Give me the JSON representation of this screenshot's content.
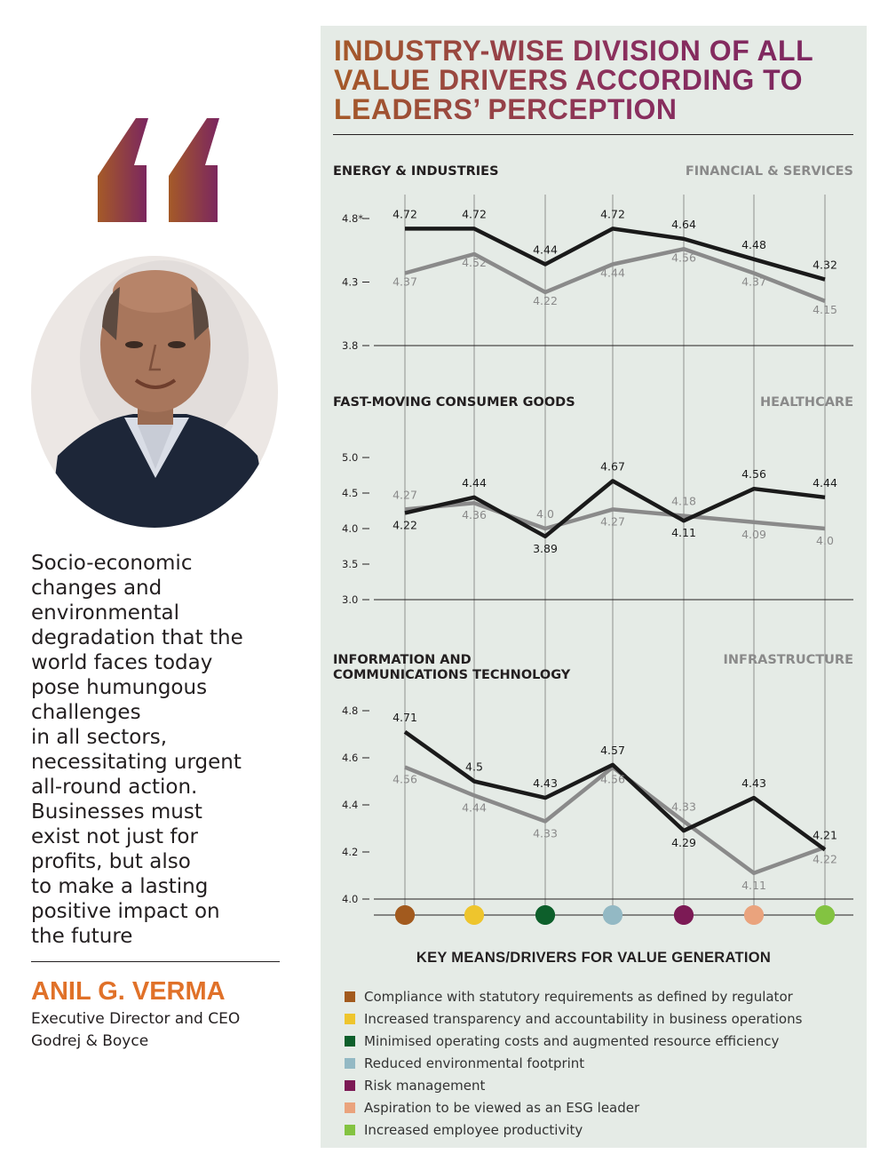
{
  "quote": {
    "text": "Socio-economic changes and environmental degradation that the world faces today pose humungous challenges in all sectors, necessitating urgent all-round action. Businesses must exist not just for profits, but also to make a lasting positive impact on the future",
    "lines": [
      "Socio-economic",
      "changes and",
      "environmental",
      "degradation that the",
      "world faces today",
      "pose humungous",
      "challenges",
      "in all sectors,",
      "necessitating urgent",
      "all-round action.",
      "Businesses must",
      "exist not just for",
      "profits, but also",
      "to make a lasting",
      "positive impact on",
      "the future"
    ],
    "name": "ANIL G. VERMA",
    "role_line1": "Executive Director and CEO",
    "role_line2": "Godrej & Boyce",
    "quote_colors": [
      "#a55a28",
      "#7a2560"
    ],
    "name_color": "#e07129"
  },
  "chart": {
    "title_lines": [
      "INDUSTRY-WISE DIVISION OF ALL",
      "VALUE DRIVERS ACCORDING TO",
      "LEADERS’ PERCEPTION"
    ],
    "key_title": "KEY MEANS/DRIVERS FOR VALUE GENERATION"
  },
  "drivers": [
    {
      "label": "Compliance with statutory requirements as defined by regulator",
      "color": "#a25a1e"
    },
    {
      "label": "Increased transparency and accountability in business operations",
      "color": "#eec52d"
    },
    {
      "label": "Minimised operating costs and augmented resource efficiency",
      "color": "#0d5f2b"
    },
    {
      "label": "Reduced environmental footprint",
      "color": "#93b9c4"
    },
    {
      "label": "Risk management",
      "color": "#7c1a55"
    },
    {
      "label": "Aspiration to be viewed as an ESG leader",
      "color": "#eaa37d"
    },
    {
      "label": "Increased employee productivity",
      "color": "#83c341"
    }
  ],
  "chart_data": [
    {
      "type": "line",
      "categories": [
        "Compliance with statutory requirements as defined by regulator",
        "Increased transparency and accountability in business operations",
        "Minimised operating costs and augmented resource efficiency",
        "Reduced environmental footprint",
        "Risk management",
        "Aspiration to be viewed as an ESG leader",
        "Increased employee productivity"
      ],
      "ylim": [
        3.8,
        4.8
      ],
      "yticks": [
        "4.8*",
        "4.3",
        "3.8"
      ],
      "series": [
        {
          "name": "ENERGY & INDUSTRIES",
          "color": "#1a1a1a",
          "values": [
            4.72,
            4.72,
            4.44,
            4.72,
            4.64,
            4.48,
            4.32
          ],
          "labels": [
            "4.72",
            "4.72",
            "4.44",
            "4.72",
            "4.64",
            "4.48",
            "4.32"
          ]
        },
        {
          "name": "FINANCIAL & SERVICES",
          "color": "#8a8a8a",
          "values": [
            4.37,
            4.52,
            4.22,
            4.44,
            4.56,
            4.37,
            4.15
          ],
          "labels": [
            "4.37",
            "4.52",
            "4.22",
            "4.44",
            "4.56",
            "4.37",
            "4.15"
          ]
        }
      ]
    },
    {
      "type": "line",
      "categories": [
        "Compliance with statutory requirements as defined by regulator",
        "Increased transparency and accountability in business operations",
        "Minimised operating costs and augmented resource efficiency",
        "Reduced environmental footprint",
        "Risk management",
        "Aspiration to be viewed as an ESG leader",
        "Increased employee productivity"
      ],
      "ylim": [
        3.0,
        5.0
      ],
      "yticks": [
        "5.0",
        "4.5",
        "4.0",
        "3.5",
        "3.0"
      ],
      "series": [
        {
          "name": "FAST-MOVING CONSUMER GOODS",
          "color": "#1a1a1a",
          "values": [
            4.22,
            4.44,
            3.89,
            4.67,
            4.11,
            4.56,
            4.44
          ],
          "labels": [
            "4.22",
            "4.44",
            "3.89",
            "4.67",
            "4.11",
            "4.56",
            "4.44"
          ]
        },
        {
          "name": "HEALTHCARE",
          "color": "#8a8a8a",
          "values": [
            4.27,
            4.36,
            4.0,
            4.27,
            4.18,
            4.09,
            4.0
          ],
          "labels": [
            "4.27",
            "4.36",
            "4.0",
            "4.27",
            "4.18",
            "4.09",
            "4.0"
          ]
        }
      ]
    },
    {
      "type": "line",
      "categories": [
        "Compliance with statutory requirements as defined by regulator",
        "Increased transparency and accountability in business operations",
        "Minimised operating costs and augmented resource efficiency",
        "Reduced environmental footprint",
        "Risk management",
        "Aspiration to be viewed as an ESG leader",
        "Increased employee productivity"
      ],
      "ylim": [
        4.0,
        4.8
      ],
      "yticks": [
        "4.8",
        "4.6",
        "4.4",
        "4.2",
        "4.0"
      ],
      "series": [
        {
          "name": "INFORMATION AND COMMUNICATIONS TECHNOLOGY",
          "color": "#1a1a1a",
          "values": [
            4.71,
            4.5,
            4.43,
            4.57,
            4.29,
            4.43,
            4.21
          ],
          "labels": [
            "4.71",
            "4.5",
            "4.43",
            "4.57",
            "4.29",
            "4.43",
            "4.21"
          ]
        },
        {
          "name": "INFRASTRUCTURE",
          "color": "#8a8a8a",
          "values": [
            4.56,
            4.44,
            4.33,
            4.56,
            4.33,
            4.11,
            4.22
          ],
          "labels": [
            "4.56",
            "4.44",
            "4.33",
            "4.56",
            "4.33",
            "4.11",
            "4.22"
          ]
        }
      ]
    }
  ]
}
